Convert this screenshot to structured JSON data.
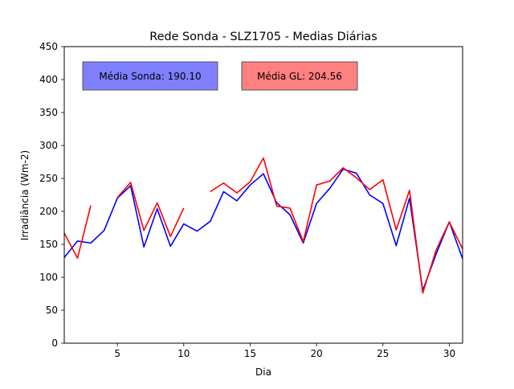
{
  "chart_data": {
    "type": "line",
    "title": "Rede Sonda - SLZ1705 - Medias Diárias",
    "xlabel": "Dia",
    "ylabel": "Irradiância (Wm-2)",
    "xlim": [
      1,
      31
    ],
    "ylim": [
      0,
      450
    ],
    "xticks": [
      5,
      10,
      15,
      20,
      25,
      30
    ],
    "yticks": [
      0,
      50,
      100,
      150,
      200,
      250,
      300,
      350,
      400,
      450
    ],
    "grid": false,
    "annotations": [
      {
        "text": "Média Sonda: 190.10",
        "color": "#8080ff"
      },
      {
        "text": "Média GL: 204.56",
        "color": "#ff8080"
      }
    ],
    "series": [
      {
        "key": "sonda",
        "color": "#0000ff",
        "x": [
          1,
          2,
          3,
          4,
          5,
          6,
          7,
          8,
          9,
          10,
          11,
          12,
          13,
          14,
          15,
          16,
          17,
          18,
          19,
          20,
          21,
          22,
          23,
          24,
          25,
          26,
          27,
          28,
          29,
          30,
          31
        ],
        "y": [
          130,
          155,
          152,
          171,
          220,
          239,
          146,
          204,
          147,
          181,
          170,
          185,
          230,
          216,
          240,
          257,
          213,
          195,
          152,
          212,
          235,
          264,
          258,
          225,
          212,
          148,
          220,
          80,
          135,
          184,
          128
        ]
      },
      {
        "key": "gl",
        "color": "#ff0000",
        "x": [
          1,
          2,
          3,
          4,
          5,
          6,
          7,
          8,
          9,
          10,
          11,
          12,
          13,
          14,
          15,
          16,
          17,
          18,
          19,
          20,
          21,
          22,
          23,
          24,
          25,
          26,
          27,
          28,
          29,
          30,
          31
        ],
        "y": [
          167,
          129,
          209,
          null,
          221,
          244,
          171,
          213,
          162,
          205,
          null,
          230,
          243,
          228,
          245,
          281,
          208,
          205,
          154,
          240,
          246,
          266,
          251,
          233,
          248,
          172,
          232,
          76,
          141,
          184,
          143
        ]
      }
    ]
  }
}
